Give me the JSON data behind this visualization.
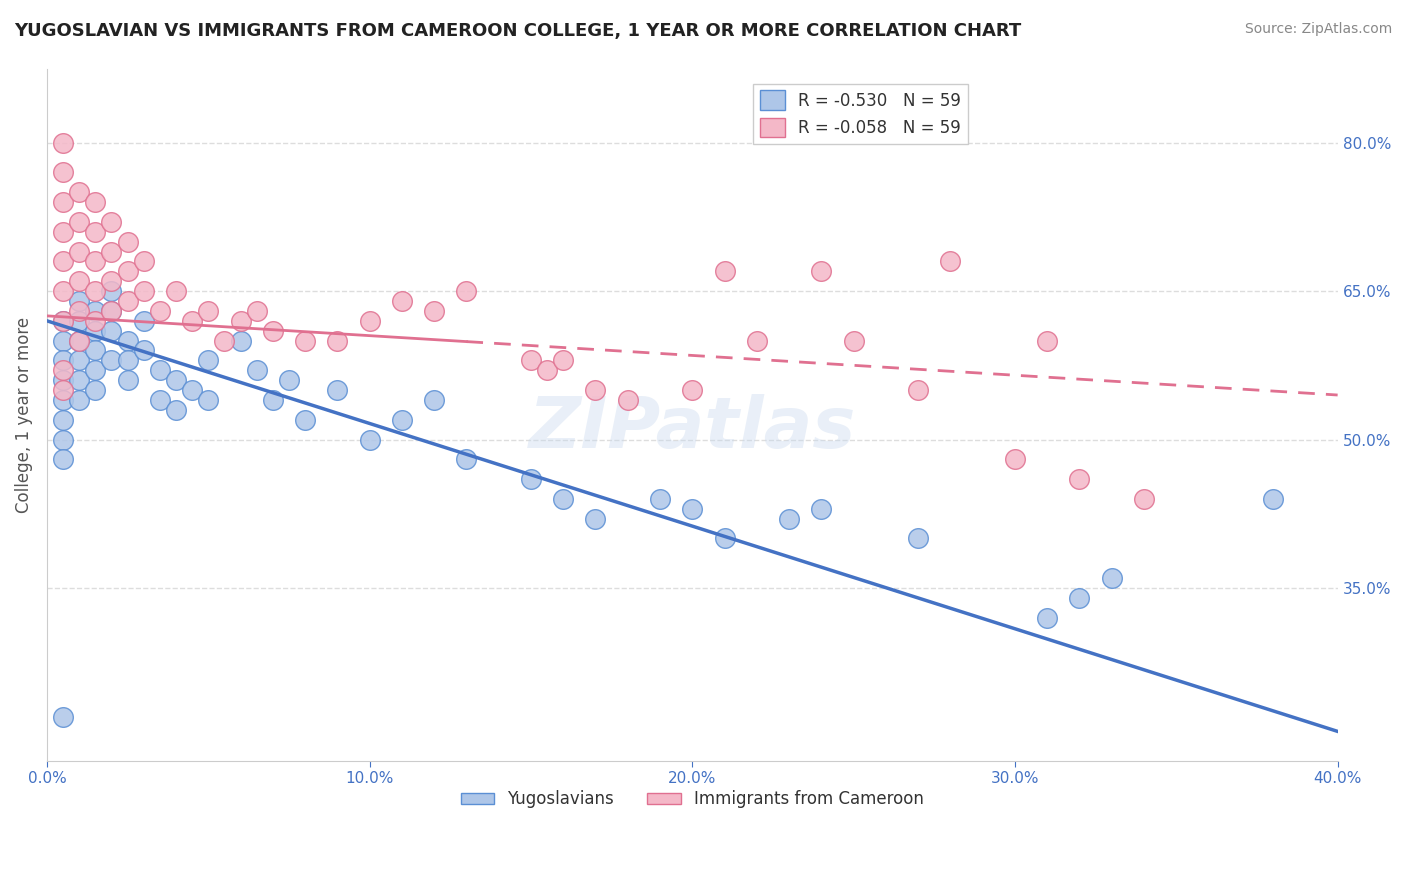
{
  "title": "YUGOSLAVIAN VS IMMIGRANTS FROM CAMEROON COLLEGE, 1 YEAR OR MORE CORRELATION CHART",
  "source": "Source: ZipAtlas.com",
  "ylabel": "College, 1 year or more",
  "xlim": [
    0.0,
    0.4
  ],
  "ylim": [
    0.175,
    0.875
  ],
  "yticks_right": [
    0.35,
    0.5,
    0.65,
    0.8
  ],
  "ytick_right_labels": [
    "35.0%",
    "50.0%",
    "65.0%",
    "80.0%"
  ],
  "xticks": [
    0.0,
    0.1,
    0.2,
    0.3,
    0.4
  ],
  "xtick_labels": [
    "0.0%",
    "10.0%",
    "20.0%",
    "30.0%",
    "40.0%"
  ],
  "grid_color": "#dddddd",
  "background_color": "#ffffff",
  "blue_x": [
    0.005,
    0.005,
    0.005,
    0.005,
    0.005,
    0.005,
    0.005,
    0.005,
    0.01,
    0.01,
    0.01,
    0.01,
    0.01,
    0.01,
    0.015,
    0.015,
    0.015,
    0.015,
    0.015,
    0.02,
    0.02,
    0.02,
    0.02,
    0.025,
    0.025,
    0.025,
    0.03,
    0.03,
    0.035,
    0.035,
    0.04,
    0.04,
    0.045,
    0.05,
    0.05,
    0.06,
    0.065,
    0.07,
    0.075,
    0.08,
    0.09,
    0.1,
    0.11,
    0.12,
    0.13,
    0.15,
    0.16,
    0.17,
    0.19,
    0.2,
    0.21,
    0.23,
    0.24,
    0.27,
    0.31,
    0.32,
    0.33,
    0.38,
    0.005
  ],
  "blue_y": [
    0.62,
    0.6,
    0.58,
    0.56,
    0.54,
    0.52,
    0.5,
    0.48,
    0.64,
    0.62,
    0.6,
    0.58,
    0.56,
    0.54,
    0.63,
    0.61,
    0.59,
    0.57,
    0.55,
    0.65,
    0.63,
    0.61,
    0.58,
    0.6,
    0.58,
    0.56,
    0.62,
    0.59,
    0.57,
    0.54,
    0.56,
    0.53,
    0.55,
    0.58,
    0.54,
    0.6,
    0.57,
    0.54,
    0.56,
    0.52,
    0.55,
    0.5,
    0.52,
    0.54,
    0.48,
    0.46,
    0.44,
    0.42,
    0.44,
    0.43,
    0.4,
    0.42,
    0.43,
    0.4,
    0.32,
    0.34,
    0.36,
    0.44,
    0.22
  ],
  "pink_x": [
    0.005,
    0.005,
    0.005,
    0.005,
    0.005,
    0.005,
    0.005,
    0.01,
    0.01,
    0.01,
    0.01,
    0.01,
    0.01,
    0.015,
    0.015,
    0.015,
    0.015,
    0.015,
    0.02,
    0.02,
    0.02,
    0.02,
    0.025,
    0.025,
    0.025,
    0.03,
    0.03,
    0.035,
    0.04,
    0.045,
    0.05,
    0.055,
    0.06,
    0.065,
    0.07,
    0.08,
    0.09,
    0.1,
    0.11,
    0.12,
    0.13,
    0.15,
    0.155,
    0.16,
    0.17,
    0.18,
    0.2,
    0.21,
    0.22,
    0.24,
    0.25,
    0.27,
    0.28,
    0.3,
    0.31,
    0.32,
    0.34,
    0.005,
    0.005
  ],
  "pink_y": [
    0.8,
    0.77,
    0.74,
    0.71,
    0.68,
    0.65,
    0.62,
    0.75,
    0.72,
    0.69,
    0.66,
    0.63,
    0.6,
    0.74,
    0.71,
    0.68,
    0.65,
    0.62,
    0.72,
    0.69,
    0.66,
    0.63,
    0.7,
    0.67,
    0.64,
    0.68,
    0.65,
    0.63,
    0.65,
    0.62,
    0.63,
    0.6,
    0.62,
    0.63,
    0.61,
    0.6,
    0.6,
    0.62,
    0.64,
    0.63,
    0.65,
    0.58,
    0.57,
    0.58,
    0.55,
    0.54,
    0.55,
    0.67,
    0.6,
    0.67,
    0.6,
    0.55,
    0.68,
    0.48,
    0.6,
    0.46,
    0.44,
    0.57,
    0.55
  ]
}
